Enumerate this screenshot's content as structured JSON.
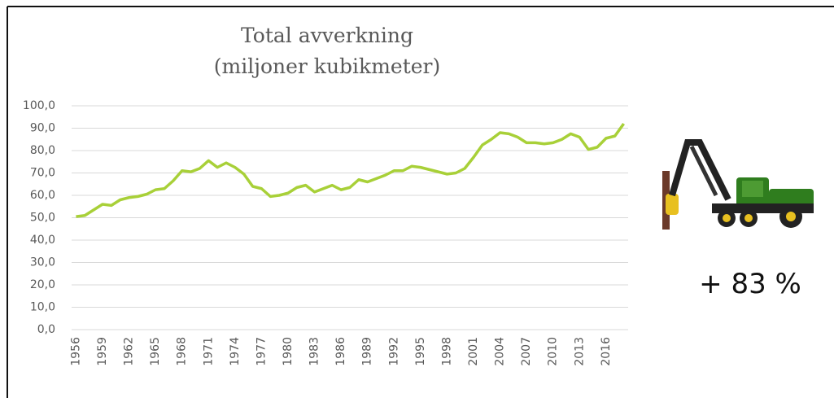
{
  "chart_data": {
    "type": "line",
    "title": [
      "Total avverkning",
      "(miljoner kubikmeter)"
    ],
    "annotation": "+ 83 %",
    "x": [
      1956,
      1957,
      1958,
      1959,
      1960,
      1961,
      1962,
      1963,
      1964,
      1965,
      1966,
      1967,
      1968,
      1969,
      1970,
      1971,
      1972,
      1973,
      1974,
      1975,
      1976,
      1977,
      1978,
      1979,
      1980,
      1981,
      1982,
      1983,
      1984,
      1985,
      1986,
      1987,
      1988,
      1989,
      1990,
      1991,
      1992,
      1993,
      1994,
      1995,
      1996,
      1997,
      1998,
      1999,
      2000,
      2001,
      2002,
      2003,
      2004,
      2005,
      2006,
      2007,
      2008,
      2009,
      2010,
      2011,
      2012,
      2013,
      2014,
      2015,
      2016,
      2017,
      2018
    ],
    "series": [
      {
        "color": "#a8d038",
        "values": [
          50.5,
          51,
          53.5,
          56,
          55.5,
          58,
          59,
          59.5,
          60.5,
          62.5,
          63,
          66.5,
          71,
          70.5,
          72,
          75.5,
          72.5,
          74.5,
          72.5,
          69.5,
          64,
          63,
          59.5,
          60,
          61,
          63.5,
          64.5,
          61.5,
          63,
          64.5,
          62.5,
          63.5,
          67,
          66,
          67.5,
          69,
          71,
          71,
          73,
          72.5,
          71.5,
          70.5,
          69.5,
          70,
          72,
          77,
          82.5,
          85,
          88,
          87.5,
          86,
          83.5,
          83.5,
          83,
          83.5,
          85,
          87.5,
          86,
          80.5,
          81.5,
          85.5,
          86.5,
          92
        ]
      }
    ],
    "xlim": [
      1955.5,
      2018.5
    ],
    "xticks": [
      1956,
      1959,
      1962,
      1965,
      1968,
      1971,
      1974,
      1977,
      1980,
      1983,
      1986,
      1989,
      1992,
      1995,
      1998,
      2001,
      2004,
      2007,
      2010,
      2013,
      2016
    ],
    "ylim": [
      0,
      100
    ],
    "yticks": [
      {
        "value": 0,
        "label": "0,0"
      },
      {
        "value": 10,
        "label": "10,0"
      },
      {
        "value": 20,
        "label": "20,0"
      },
      {
        "value": 30,
        "label": "30,0"
      },
      {
        "value": 40,
        "label": "40,0"
      },
      {
        "value": 50,
        "label": "50,0"
      },
      {
        "value": 60,
        "label": "60,0"
      },
      {
        "value": 70,
        "label": "70,0"
      },
      {
        "value": 80,
        "label": "80,0"
      },
      {
        "value": 90,
        "label": "90,0"
      },
      {
        "value": 100,
        "label": "100,0"
      }
    ],
    "grid": true
  }
}
